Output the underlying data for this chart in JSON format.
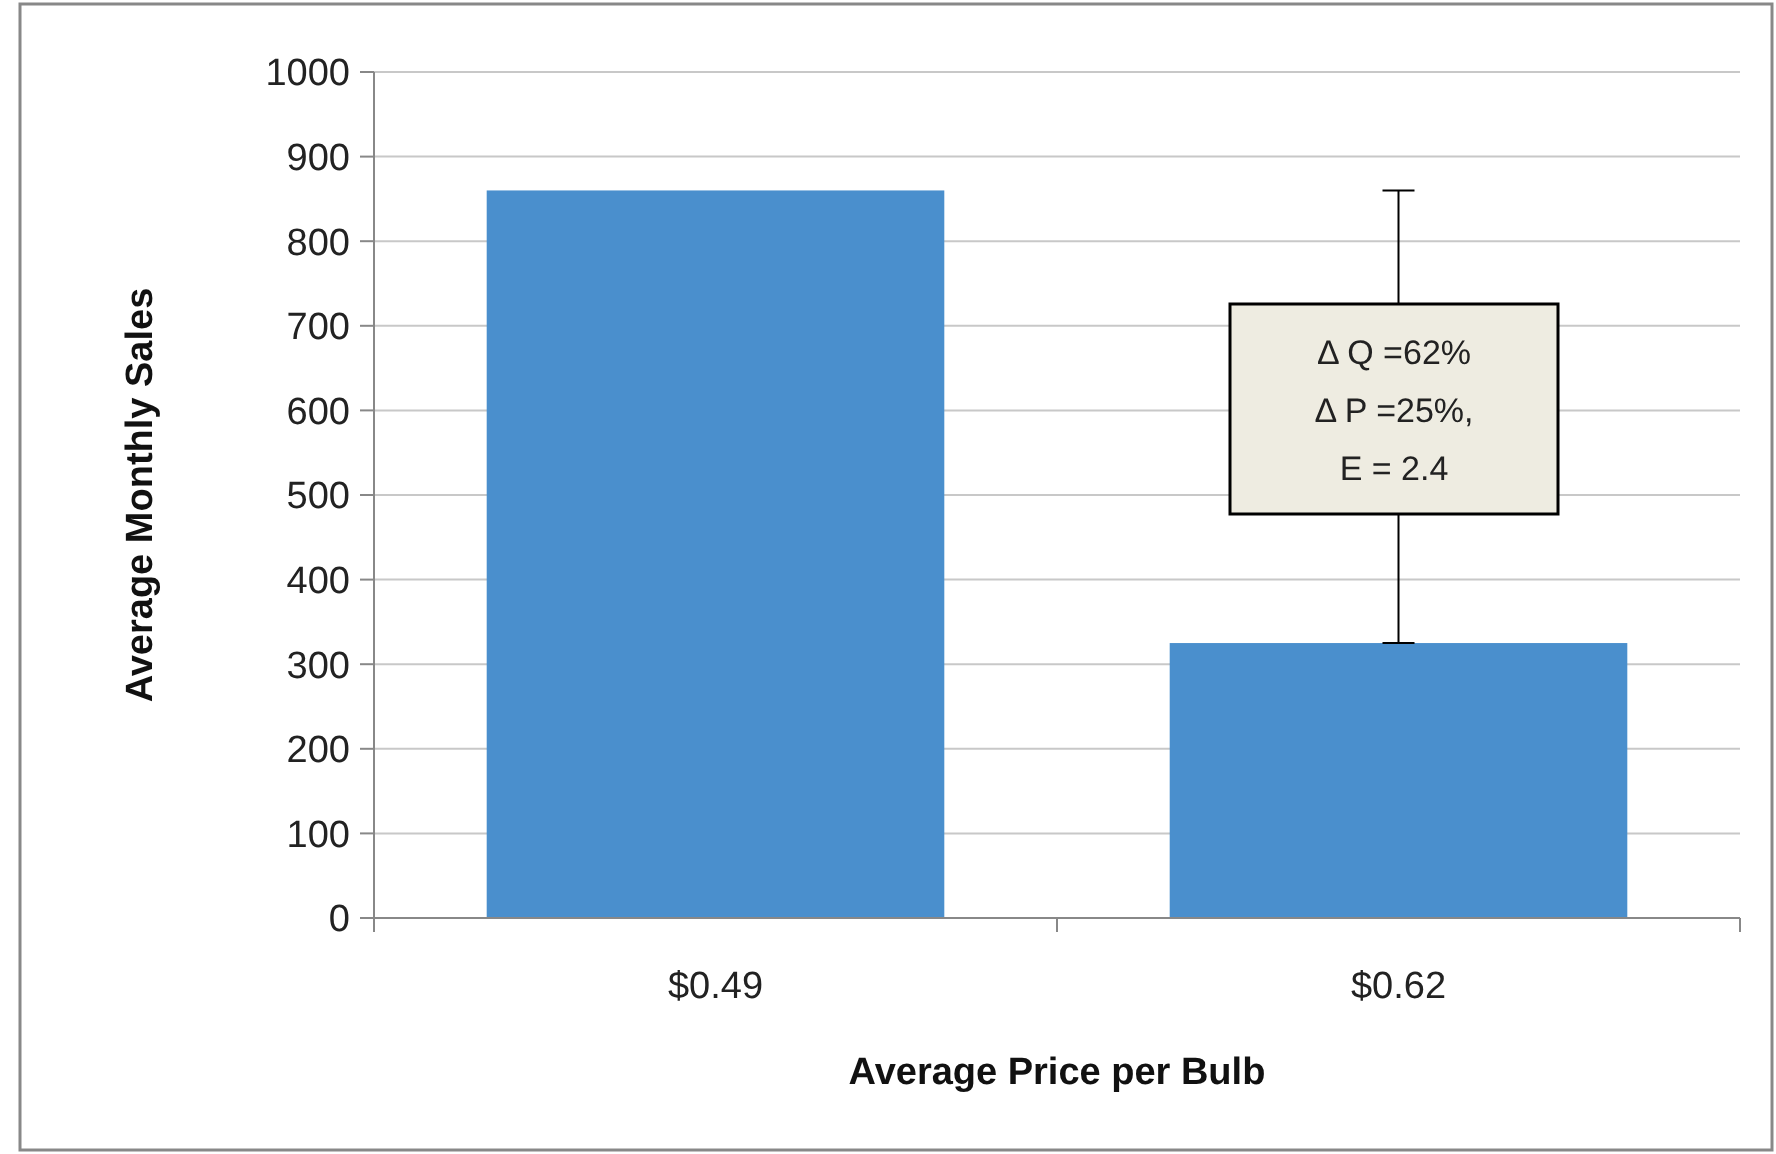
{
  "chart_data": {
    "type": "bar",
    "xlabel": "Average Price per Bulb",
    "ylabel": "Average Monthly Sales",
    "categories": [
      "$0.49",
      "$0.62"
    ],
    "values": [
      860,
      325
    ],
    "errors": [
      null,
      [
        325,
        860
      ]
    ],
    "color": "#4a8fcd",
    "ylim": [
      0,
      1000
    ],
    "yticks": [
      0,
      100,
      200,
      300,
      400,
      500,
      600,
      700,
      800,
      900,
      1000
    ],
    "grid": "y",
    "annotations": [
      "Δ Q =62%\nΔ P =25%,\nE = 2.4"
    ]
  }
}
